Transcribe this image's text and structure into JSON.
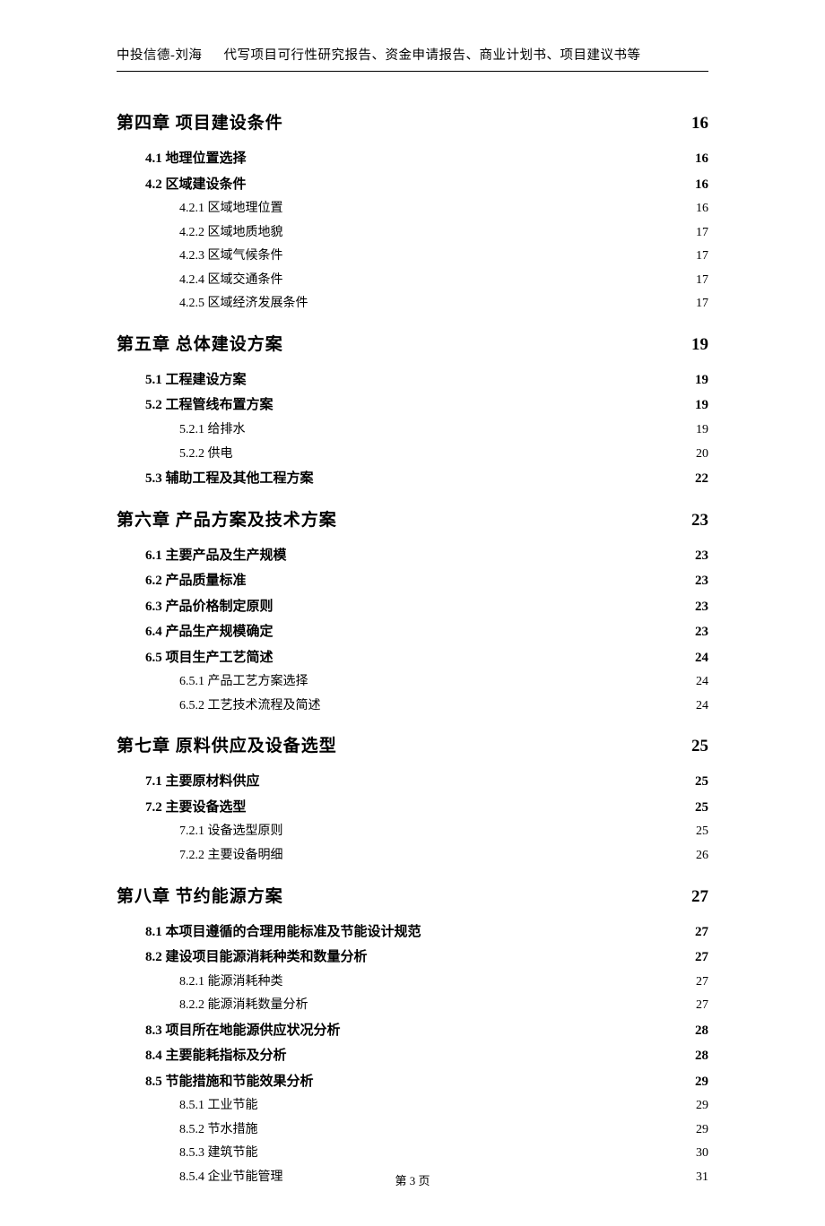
{
  "colors": {
    "text": "#000000",
    "background": "#ffffff",
    "rule": "#000000"
  },
  "typography": {
    "body_family": "SimSun, 宋体, serif",
    "chapter_family": "SimHei, 黑体, KaiTi, 楷体, serif",
    "chapter_fontsize_pt": 14,
    "section_fontsize_pt": 11,
    "subsection_fontsize_pt": 10.5,
    "header_fontsize_pt": 11,
    "footer_fontsize_pt": 10
  },
  "header": {
    "company": "中投信德-刘海",
    "description": "代写项目可行性研究报告、资金申请报告、商业计划书、项目建议书等"
  },
  "footer": {
    "page_label": "第 3 页"
  },
  "toc": [
    {
      "level": 1,
      "label": "第四章  项目建设条件",
      "page": "16"
    },
    {
      "level": 2,
      "label": "4.1 地理位置选择",
      "page": "16"
    },
    {
      "level": 2,
      "label": "4.2 区域建设条件",
      "page": "16"
    },
    {
      "level": 3,
      "label": "4.2.1 区域地理位置",
      "page": "16"
    },
    {
      "level": 3,
      "label": "4.2.2 区域地质地貌",
      "page": "17"
    },
    {
      "level": 3,
      "label": "4.2.3 区域气候条件",
      "page": "17"
    },
    {
      "level": 3,
      "label": "4.2.4 区域交通条件",
      "page": "17"
    },
    {
      "level": 3,
      "label": "4.2.5 区域经济发展条件",
      "page": "17"
    },
    {
      "level": 1,
      "label": "第五章  总体建设方案",
      "page": "19"
    },
    {
      "level": 2,
      "label": "5.1 工程建设方案",
      "page": "19"
    },
    {
      "level": 2,
      "label": "5.2 工程管线布置方案",
      "page": "19"
    },
    {
      "level": 3,
      "label": "5.2.1 给排水",
      "page": "19"
    },
    {
      "level": 3,
      "label": "5.2.2 供电",
      "page": "20"
    },
    {
      "level": 2,
      "label": "5.3 辅助工程及其他工程方案",
      "page": "22"
    },
    {
      "level": 1,
      "label": "第六章  产品方案及技术方案",
      "page": "23"
    },
    {
      "level": 2,
      "label": "6.1 主要产品及生产规模",
      "page": "23"
    },
    {
      "level": 2,
      "label": "6.2 产品质量标准",
      "page": "23"
    },
    {
      "level": 2,
      "label": "6.3 产品价格制定原则",
      "page": "23"
    },
    {
      "level": 2,
      "label": "6.4 产品生产规模确定",
      "page": "23"
    },
    {
      "level": 2,
      "label": "6.5 项目生产工艺简述",
      "page": "24"
    },
    {
      "level": 3,
      "label": "6.5.1 产品工艺方案选择",
      "page": "24"
    },
    {
      "level": 3,
      "label": "6.5.2 工艺技术流程及简述",
      "page": "24"
    },
    {
      "level": 1,
      "label": "第七章  原料供应及设备选型",
      "page": "25"
    },
    {
      "level": 2,
      "label": "7.1 主要原材料供应",
      "page": "25"
    },
    {
      "level": 2,
      "label": "7.2 主要设备选型",
      "page": "25"
    },
    {
      "level": 3,
      "label": "7.2.1 设备选型原则",
      "page": "25"
    },
    {
      "level": 3,
      "label": "7.2.2 主要设备明细",
      "page": "26"
    },
    {
      "level": 1,
      "label": "第八章  节约能源方案",
      "page": "27"
    },
    {
      "level": 2,
      "label": "8.1 本项目遵循的合理用能标准及节能设计规范",
      "page": "27"
    },
    {
      "level": 2,
      "label": "8.2 建设项目能源消耗种类和数量分析",
      "page": "27"
    },
    {
      "level": 3,
      "label": "8.2.1 能源消耗种类",
      "page": "27"
    },
    {
      "level": 3,
      "label": "8.2.2 能源消耗数量分析",
      "page": "27"
    },
    {
      "level": 2,
      "label": "8.3 项目所在地能源供应状况分析",
      "page": "28"
    },
    {
      "level": 2,
      "label": "8.4 主要能耗指标及分析",
      "page": "28"
    },
    {
      "level": 2,
      "label": "8.5 节能措施和节能效果分析",
      "page": "29"
    },
    {
      "level": 3,
      "label": "8.5.1 工业节能",
      "page": "29"
    },
    {
      "level": 3,
      "label": "8.5.2 节水措施",
      "page": "29"
    },
    {
      "level": 3,
      "label": "8.5.3 建筑节能",
      "page": "30"
    },
    {
      "level": 3,
      "label": "8.5.4 企业节能管理",
      "page": "31"
    }
  ]
}
